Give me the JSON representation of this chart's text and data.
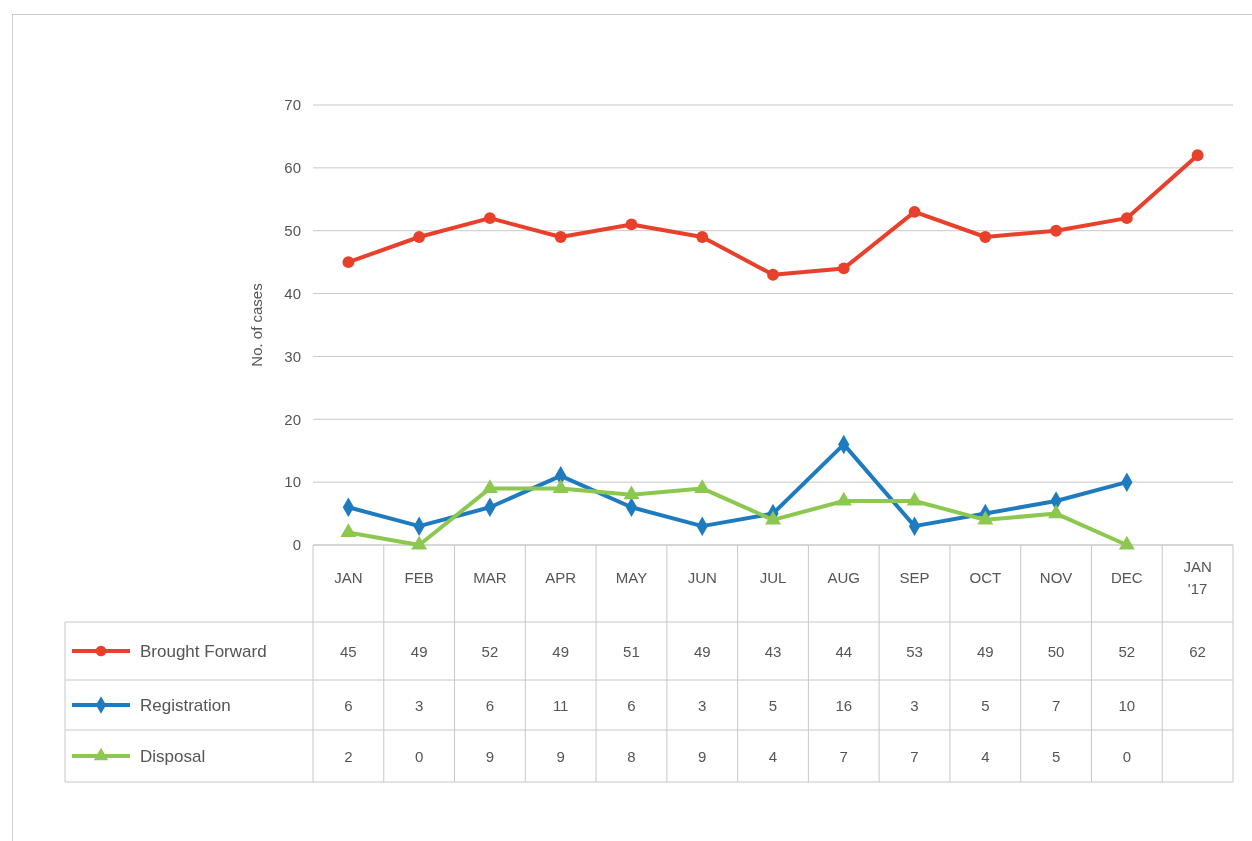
{
  "chart_data": {
    "type": "line",
    "ylabel": "No. of cases",
    "categories": [
      "JAN",
      "FEB",
      "MAR",
      "APR",
      "MAY",
      "JUN",
      "JUL",
      "AUG",
      "SEP",
      "OCT",
      "NOV",
      "DEC",
      "JAN '17"
    ],
    "series": [
      {
        "name": "Brought Forward",
        "color": "#e8402a",
        "marker": "circle",
        "values": [
          45,
          49,
          52,
          49,
          51,
          49,
          43,
          44,
          53,
          49,
          50,
          52,
          62
        ]
      },
      {
        "name": "Registration",
        "color": "#1f7bbf",
        "marker": "diamond",
        "values": [
          6,
          3,
          6,
          11,
          6,
          3,
          5,
          16,
          3,
          5,
          7,
          10,
          null
        ]
      },
      {
        "name": "Disposal",
        "color": "#8cc850",
        "marker": "triangle",
        "values": [
          2,
          0,
          9,
          9,
          8,
          9,
          4,
          7,
          7,
          4,
          5,
          0,
          null
        ]
      }
    ],
    "ylim": [
      0,
      70
    ],
    "yticks": [
      0,
      10,
      20,
      30,
      40,
      50,
      60,
      70
    ],
    "grid": "y",
    "legend": "bottom",
    "data_labels": true,
    "line_style": "solid"
  }
}
